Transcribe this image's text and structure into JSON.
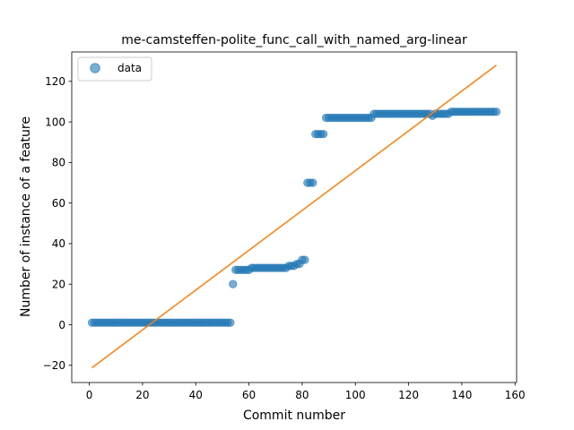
{
  "chart_data": {
    "type": "scatter",
    "title": "me-camsteffen-polite_func_call_with_named_arg-linear",
    "xlabel": "Commit number",
    "ylabel": "Number of instance of a feature",
    "xlim": [
      -6.6,
      160.6
    ],
    "ylim": [
      -28.5,
      134.5
    ],
    "xticks": [
      0,
      20,
      40,
      60,
      80,
      100,
      120,
      140,
      160
    ],
    "yticks": [
      -20,
      0,
      20,
      40,
      60,
      80,
      100,
      120
    ],
    "grid": false,
    "legend": {
      "position": "top-left",
      "entries": [
        "data"
      ]
    },
    "colors": {
      "data": "#1f77b4",
      "fit": "#ff7f0e"
    },
    "series": [
      {
        "name": "data",
        "kind": "scatter",
        "segments": [
          {
            "x_start": 1,
            "x_end": 53,
            "y": 1
          },
          {
            "x_start": 54,
            "x_end": 54,
            "y": 20
          },
          {
            "x_start": 55,
            "x_end": 60,
            "y": 27
          },
          {
            "x_start": 61,
            "x_end": 74,
            "y": 28
          },
          {
            "x_start": 75,
            "x_end": 77,
            "y": 29
          },
          {
            "x_start": 78,
            "x_end": 79,
            "y": 30
          },
          {
            "x_start": 80,
            "x_end": 81,
            "y": 32
          },
          {
            "x_start": 82,
            "x_end": 84,
            "y": 70
          },
          {
            "x_start": 85,
            "x_end": 88,
            "y": 94
          },
          {
            "x_start": 89,
            "x_end": 106,
            "y": 102
          },
          {
            "x_start": 107,
            "x_end": 128,
            "y": 104
          },
          {
            "x_start": 129,
            "x_end": 129,
            "y": 103
          },
          {
            "x_start": 130,
            "x_end": 135,
            "y": 104
          },
          {
            "x_start": 136,
            "x_end": 153,
            "y": 105
          }
        ]
      },
      {
        "kind": "line",
        "x": [
          1,
          153
        ],
        "y": [
          -21.2,
          128.0
        ]
      }
    ]
  }
}
